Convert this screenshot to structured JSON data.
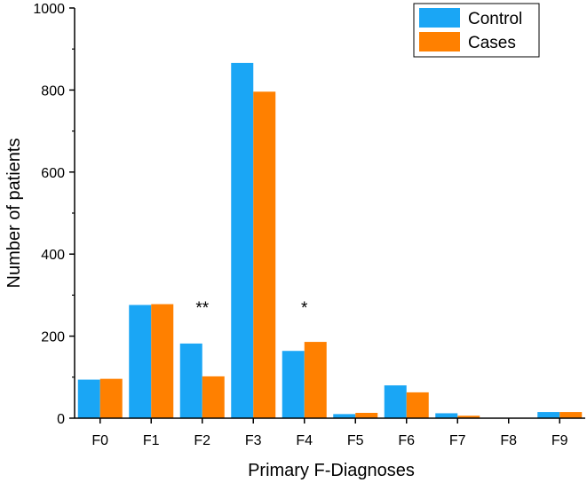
{
  "chart_data": {
    "type": "bar",
    "title": "",
    "xlabel": "Primary F-Diagnoses",
    "ylabel": "Number of patients",
    "categories": [
      "F0",
      "F1",
      "F2",
      "F3",
      "F4",
      "F5",
      "F6",
      "F7",
      "F8",
      "F9"
    ],
    "series": [
      {
        "name": "Control",
        "color": "#1aa6f5",
        "values": [
          94,
          276,
          182,
          866,
          164,
          10,
          80,
          12,
          0,
          15
        ]
      },
      {
        "name": "Cases",
        "color": "#ff8000",
        "values": [
          96,
          278,
          102,
          796,
          186,
          13,
          63,
          6,
          0,
          15
        ]
      }
    ],
    "ylim": [
      0,
      1000
    ],
    "yticks": [
      0,
      200,
      400,
      600,
      800,
      1000
    ],
    "legend": "top-right",
    "grid": false,
    "annotations": [
      {
        "text": "**",
        "category": "F2",
        "y": 290
      },
      {
        "text": "*",
        "category": "F4",
        "y": 290
      }
    ]
  }
}
